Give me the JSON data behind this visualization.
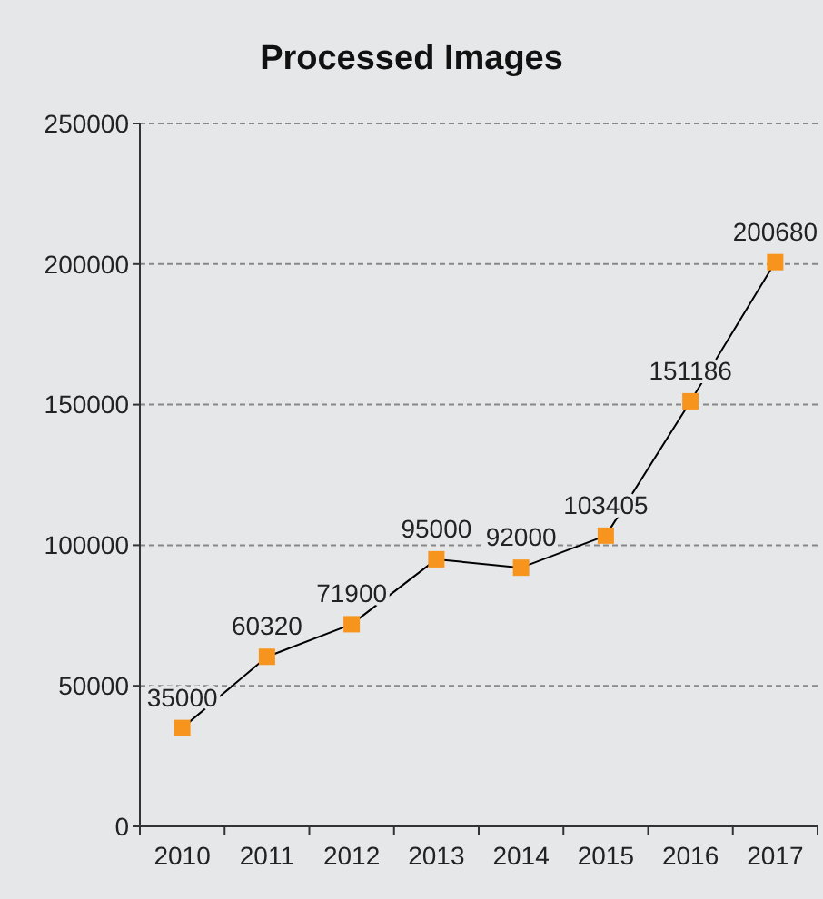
{
  "chart_data": {
    "type": "line",
    "title": "Processed Images",
    "categories": [
      "2010",
      "2011",
      "2012",
      "2013",
      "2014",
      "2015",
      "2016",
      "2017"
    ],
    "series": [
      {
        "color": "#f7941d",
        "values": [
          35000,
          60320,
          71900,
          95000,
          92000,
          103405,
          151186,
          200680
        ]
      }
    ],
    "ylim": [
      0,
      250000
    ],
    "yticks": [
      0,
      50000,
      100000,
      150000,
      200000,
      250000
    ],
    "grid": "y",
    "marker": "square",
    "line_style": "solid",
    "data_labels": true
  }
}
